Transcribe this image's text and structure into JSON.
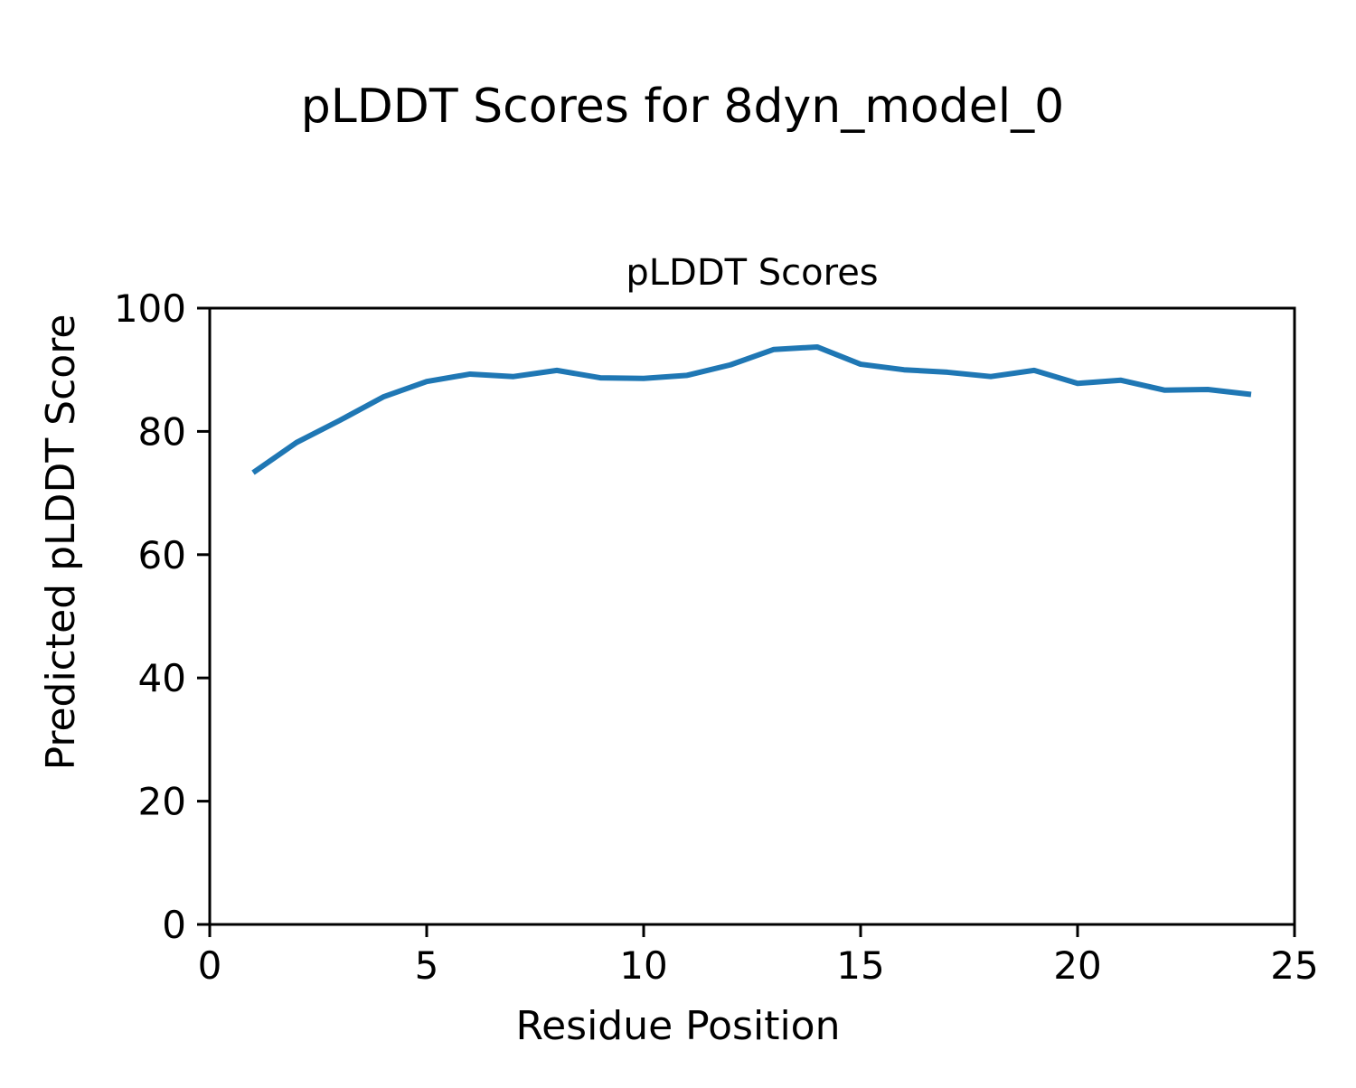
{
  "figure": {
    "suptitle": "pLDDT Scores for 8dyn_model_0"
  },
  "chart_data": {
    "type": "line",
    "title": "pLDDT Scores",
    "suptitle": "pLDDT Scores for 8dyn_model_0",
    "xlabel": "Residue Position",
    "ylabel": "Predicted pLDDT Score",
    "xlim": [
      0,
      25
    ],
    "ylim": [
      0,
      100
    ],
    "xticks": [
      0,
      5,
      10,
      15,
      20,
      25
    ],
    "yticks": [
      0,
      20,
      40,
      60,
      80,
      100
    ],
    "grid": false,
    "legend_position": "none",
    "line_color": "#1f77b4",
    "x": [
      1,
      2,
      3,
      4,
      5,
      6,
      7,
      8,
      9,
      10,
      11,
      12,
      13,
      14,
      15,
      16,
      17,
      18,
      19,
      20,
      21,
      22,
      23,
      24
    ],
    "y": [
      73.3,
      78.2,
      81.8,
      85.6,
      88.1,
      89.3,
      88.9,
      89.9,
      88.7,
      88.6,
      89.1,
      90.8,
      93.3,
      93.7,
      90.9,
      90.0,
      89.6,
      88.9,
      89.9,
      87.8,
      88.3,
      86.7,
      86.8,
      86.0
    ]
  }
}
